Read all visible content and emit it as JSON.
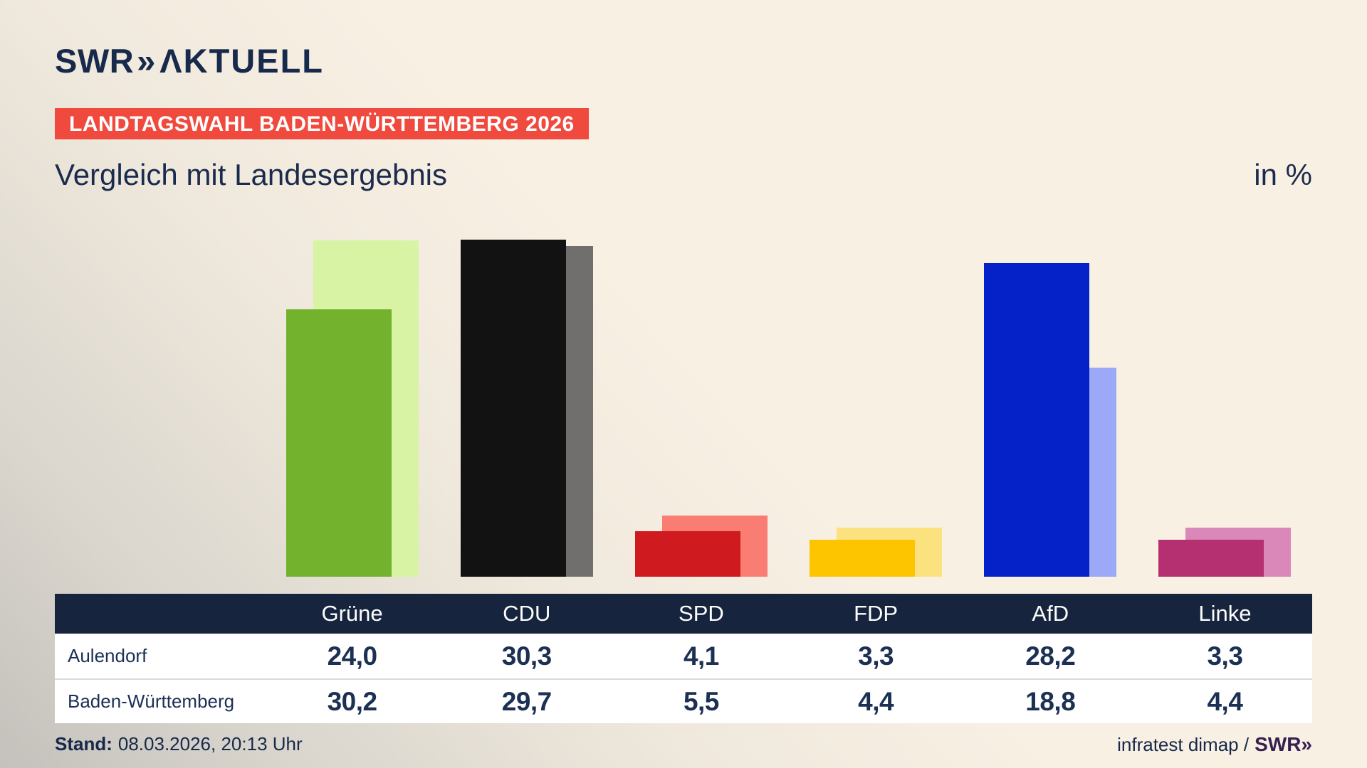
{
  "header": {
    "logo": {
      "brand": "SWR",
      "chevrons": "»",
      "suffix": "ΛKTUELL"
    },
    "badge": "LANDTAGSWAHL BADEN-WÜRTTEMBERG 2026",
    "title": "Vergleich mit Landesergebnis",
    "unit_label": "in %"
  },
  "chart_data": {
    "type": "bar",
    "categories": [
      "Grüne",
      "CDU",
      "SPD",
      "FDP",
      "AfD",
      "Linke"
    ],
    "series": [
      {
        "name": "Aulendorf",
        "values": [
          24.0,
          30.3,
          4.1,
          3.3,
          28.2,
          3.3
        ]
      },
      {
        "name": "Baden-Württemberg",
        "values": [
          30.2,
          29.7,
          5.5,
          4.4,
          18.8,
          4.4
        ]
      }
    ],
    "title": "Vergleich mit Landesergebnis",
    "unit": "in %",
    "ylim": [
      0,
      32
    ],
    "grid": false,
    "legend_position": "none",
    "value_format": "comma-decimal",
    "colors": {
      "Grüne": {
        "front": "#72b22c",
        "back": "#d9f3a5"
      },
      "CDU": {
        "front": "#121212",
        "back": "#706f6d"
      },
      "SPD": {
        "front": "#cf1a1f",
        "back": "#fa7d74"
      },
      "FDP": {
        "front": "#fdc500",
        "back": "#fce27e"
      },
      "AfD": {
        "front": "#0522c9",
        "back": "#9ca9f7"
      },
      "Linke": {
        "front": "#b53071",
        "back": "#d988b9"
      }
    }
  },
  "table": {
    "columns": [
      "Grüne",
      "CDU",
      "SPD",
      "FDP",
      "AfD",
      "Linke"
    ],
    "row_labels": [
      "Aulendorf",
      "Baden-Württemberg"
    ],
    "rows": [
      [
        "24,0",
        "30,3",
        "4,1",
        "3,3",
        "28,2",
        "3,3"
      ],
      [
        "30,2",
        "29,7",
        "5,5",
        "4,4",
        "18,8",
        "4,4"
      ]
    ]
  },
  "footer": {
    "stand_label": "Stand:",
    "stand_value": "08.03.2026, 20:13 Uhr",
    "source": "infratest dimap /",
    "source_logo": "SWR»"
  },
  "colors": {
    "background_cream": "#f8f0e3",
    "background_gray": "#c4c1bc",
    "badge_red": "#f04a3e",
    "navy_text": "#1b2b4d",
    "table_header_navy": "#16243d",
    "table_value_navy": "#1c3054",
    "row_white": "#ffffff",
    "row_separator": "#ddd9d2",
    "source_logo_purple": "#371f52"
  }
}
